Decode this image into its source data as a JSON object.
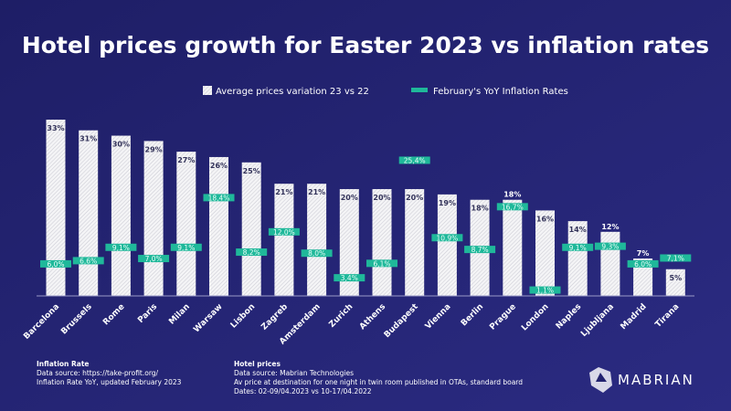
{
  "chart_data": {
    "type": "bar",
    "title": "Hotel prices growth for Easter 2023 vs inflation rates",
    "categories": [
      "Barcelona",
      "Brussels",
      "Rome",
      "Paris",
      "Milan",
      "Warsaw",
      "Lisbon",
      "Zagreb",
      "Amsterdam",
      "Zurich",
      "Athens",
      "Budapest",
      "Vienna",
      "Berlin",
      "Prague",
      "London",
      "Naples",
      "Ljubljana",
      "Madrid",
      "Tirana"
    ],
    "series": [
      {
        "name": "Average prices variation 23 vs 22",
        "kind": "bar",
        "values": [
          33,
          31,
          30,
          29,
          27,
          26,
          25,
          21,
          21,
          20,
          20,
          20,
          19,
          18,
          18,
          16,
          14,
          12,
          7,
          5
        ],
        "labels": [
          "33%",
          "31%",
          "30%",
          "29%",
          "27%",
          "26%",
          "25%",
          "21%",
          "21%",
          "20%",
          "20%",
          "20%",
          "19%",
          "18%",
          "18%",
          "16%",
          "14%",
          "12%",
          "7%",
          "5%"
        ]
      },
      {
        "name": "February's YoY Inflation Rates",
        "kind": "marker",
        "values": [
          6.0,
          6.6,
          9.1,
          7.0,
          9.1,
          18.4,
          8.2,
          12.0,
          8.0,
          3.4,
          6.1,
          25.4,
          10.9,
          8.7,
          16.7,
          1.1,
          9.1,
          9.3,
          6.0,
          7.1
        ],
        "labels": [
          "6,0%",
          "6,6%",
          "9,1%",
          "7,0%",
          "9,1%",
          "18,4%",
          "8,2%",
          "12,0%",
          "8,0%",
          "3,4%",
          "6,1%",
          "25,4%",
          "10,9%",
          "8,7%",
          "16,7%",
          "1,1%",
          "9,1%",
          "9,3%",
          "6,0%",
          "7,1%"
        ]
      }
    ],
    "ylim": [
      0,
      33
    ],
    "legend": "top-center",
    "grid": false,
    "colors": {
      "background": "#23236f",
      "bar": "#f2f2f2",
      "bar_hatch": "#c8c8d0",
      "marker": "#1fb89a",
      "text": "#ffffff",
      "bar_label": "#33335a"
    }
  },
  "footer": {
    "inflation": {
      "heading": "Inflation Rate",
      "line1": "Data source: https://take-profit.org/",
      "line2": "Inflation Rate YoY, updated February 2023"
    },
    "hotel": {
      "heading": "Hotel prices",
      "line1": "Data source: Mabrian Technologies",
      "line2": "Av price at destination for one night in twin room published in OTAs,  standard board",
      "line3": "Dates: 02-09/04.2023 vs 10-17/04.2022"
    },
    "logo_text": "MABRIAN"
  }
}
